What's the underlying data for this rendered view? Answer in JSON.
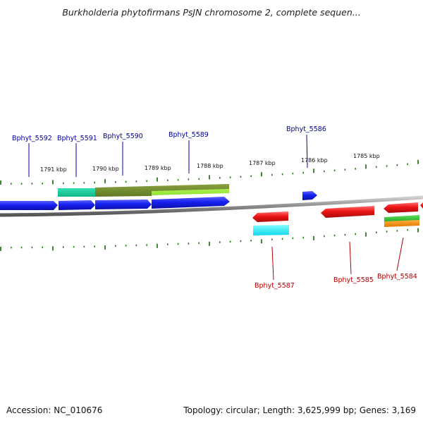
{
  "title": "Burkholderia phytofirmans PsJN chromosome 2, complete sequen...",
  "footer": {
    "accession": "Accession: NC_010676",
    "summary": "Topology: circular; Length: 3,625,999 bp; Genes: 3,169"
  },
  "scale_labels": [
    "1791 kbp",
    "1790 kbp",
    "1789 kbp",
    "1788 kbp",
    "1787 kbp",
    "1786 kbp",
    "1785 kbp"
  ],
  "gene_labels": {
    "top": [
      "Bphyt_5592",
      "Bphyt_5591",
      "Bphyt_5590",
      "Bphyt_5589",
      "Bphyt_5586"
    ],
    "bottom": [
      "Bphyt_5587",
      "Bphyt_5585",
      "Bphyt_5584"
    ]
  },
  "colors": {
    "forward_gene": "#0b16e6",
    "reverse_gene": "#e60b0b",
    "top_label": "#00009a",
    "bottom_label": "#b30000",
    "tick": "#2a7a1a",
    "backbone": "#8a8a8a"
  }
}
